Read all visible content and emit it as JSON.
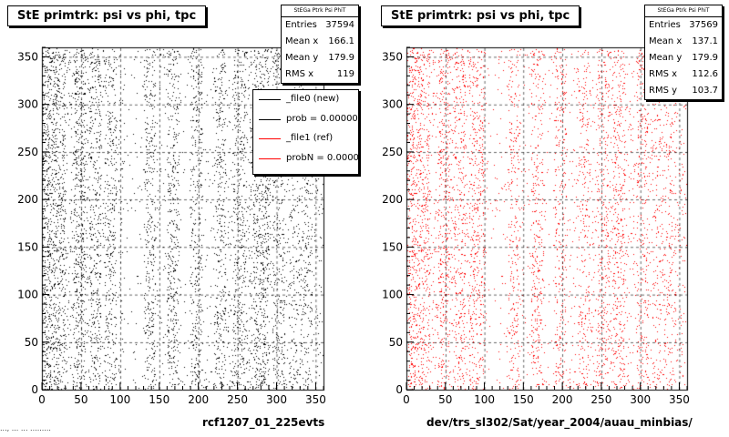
{
  "footer_text": "..., ... ... .........",
  "chart_data": [
    {
      "type": "scatter",
      "title": "StE primtrk: psi vs phi, tpc",
      "xlabel": "rcf1207_01_225evts",
      "ylabel": "",
      "xlim": [
        0,
        360
      ],
      "ylim": [
        0,
        360
      ],
      "xticks": [
        0,
        50,
        100,
        150,
        200,
        250,
        300,
        350
      ],
      "yticks": [
        0,
        50,
        100,
        150,
        200,
        250,
        300,
        350
      ],
      "grid": true,
      "marker_color": "#000000",
      "density": "vertical bands at roughly 0-30, 40-55, 60-75, 80-95, 130-145, 160-175, 190-205, 220-235, 245-260, 270-290 (densest), 295-310, 315-345",
      "stats": {
        "header": "StEGa Ptrk Psi PhiT",
        "rows": [
          {
            "label": "Entries",
            "value": "37594"
          },
          {
            "label": "Mean x",
            "value": "166.1"
          },
          {
            "label": "Mean y",
            "value": "179.9"
          },
          {
            "label": "RMS x",
            "value": "119"
          }
        ]
      },
      "legend": [
        {
          "label": "_file0 (new)",
          "color": "#000000"
        },
        {
          "label": "prob = 0.000000",
          "color": "#000000"
        },
        {
          "label": "_file1 (ref)",
          "color": "#ff0000"
        },
        {
          "label": "probN = 0.000000",
          "color": "#ff0000"
        }
      ]
    },
    {
      "type": "scatter",
      "title": "StE primtrk: psi vs phi, tpc",
      "xlabel": "dev/trs_sl302/Sat/year_2004/auau_minbias/",
      "ylabel": "",
      "xlim": [
        0,
        360
      ],
      "ylim": [
        0,
        360
      ],
      "xticks": [
        0,
        50,
        100,
        150,
        200,
        250,
        300,
        350
      ],
      "yticks": [
        0,
        50,
        100,
        150,
        200,
        250,
        300,
        350
      ],
      "grid": true,
      "marker_color": "#ff0000",
      "density": "vertical bands at roughly 0-30, 40-55, 60-75, 80-100, 130-145, 160-175, 190-205, 220-235, 245-260, 265-280 (densest), 295-310, 315-345",
      "stats": {
        "header": "StEGa Ptrk Psi PhiT",
        "rows": [
          {
            "label": "Entries",
            "value": "37569"
          },
          {
            "label": "Mean x",
            "value": "137.1"
          },
          {
            "label": "Mean y",
            "value": "179.9"
          },
          {
            "label": "RMS x",
            "value": "112.6"
          },
          {
            "label": "RMS y",
            "value": "103.7"
          }
        ]
      }
    }
  ]
}
